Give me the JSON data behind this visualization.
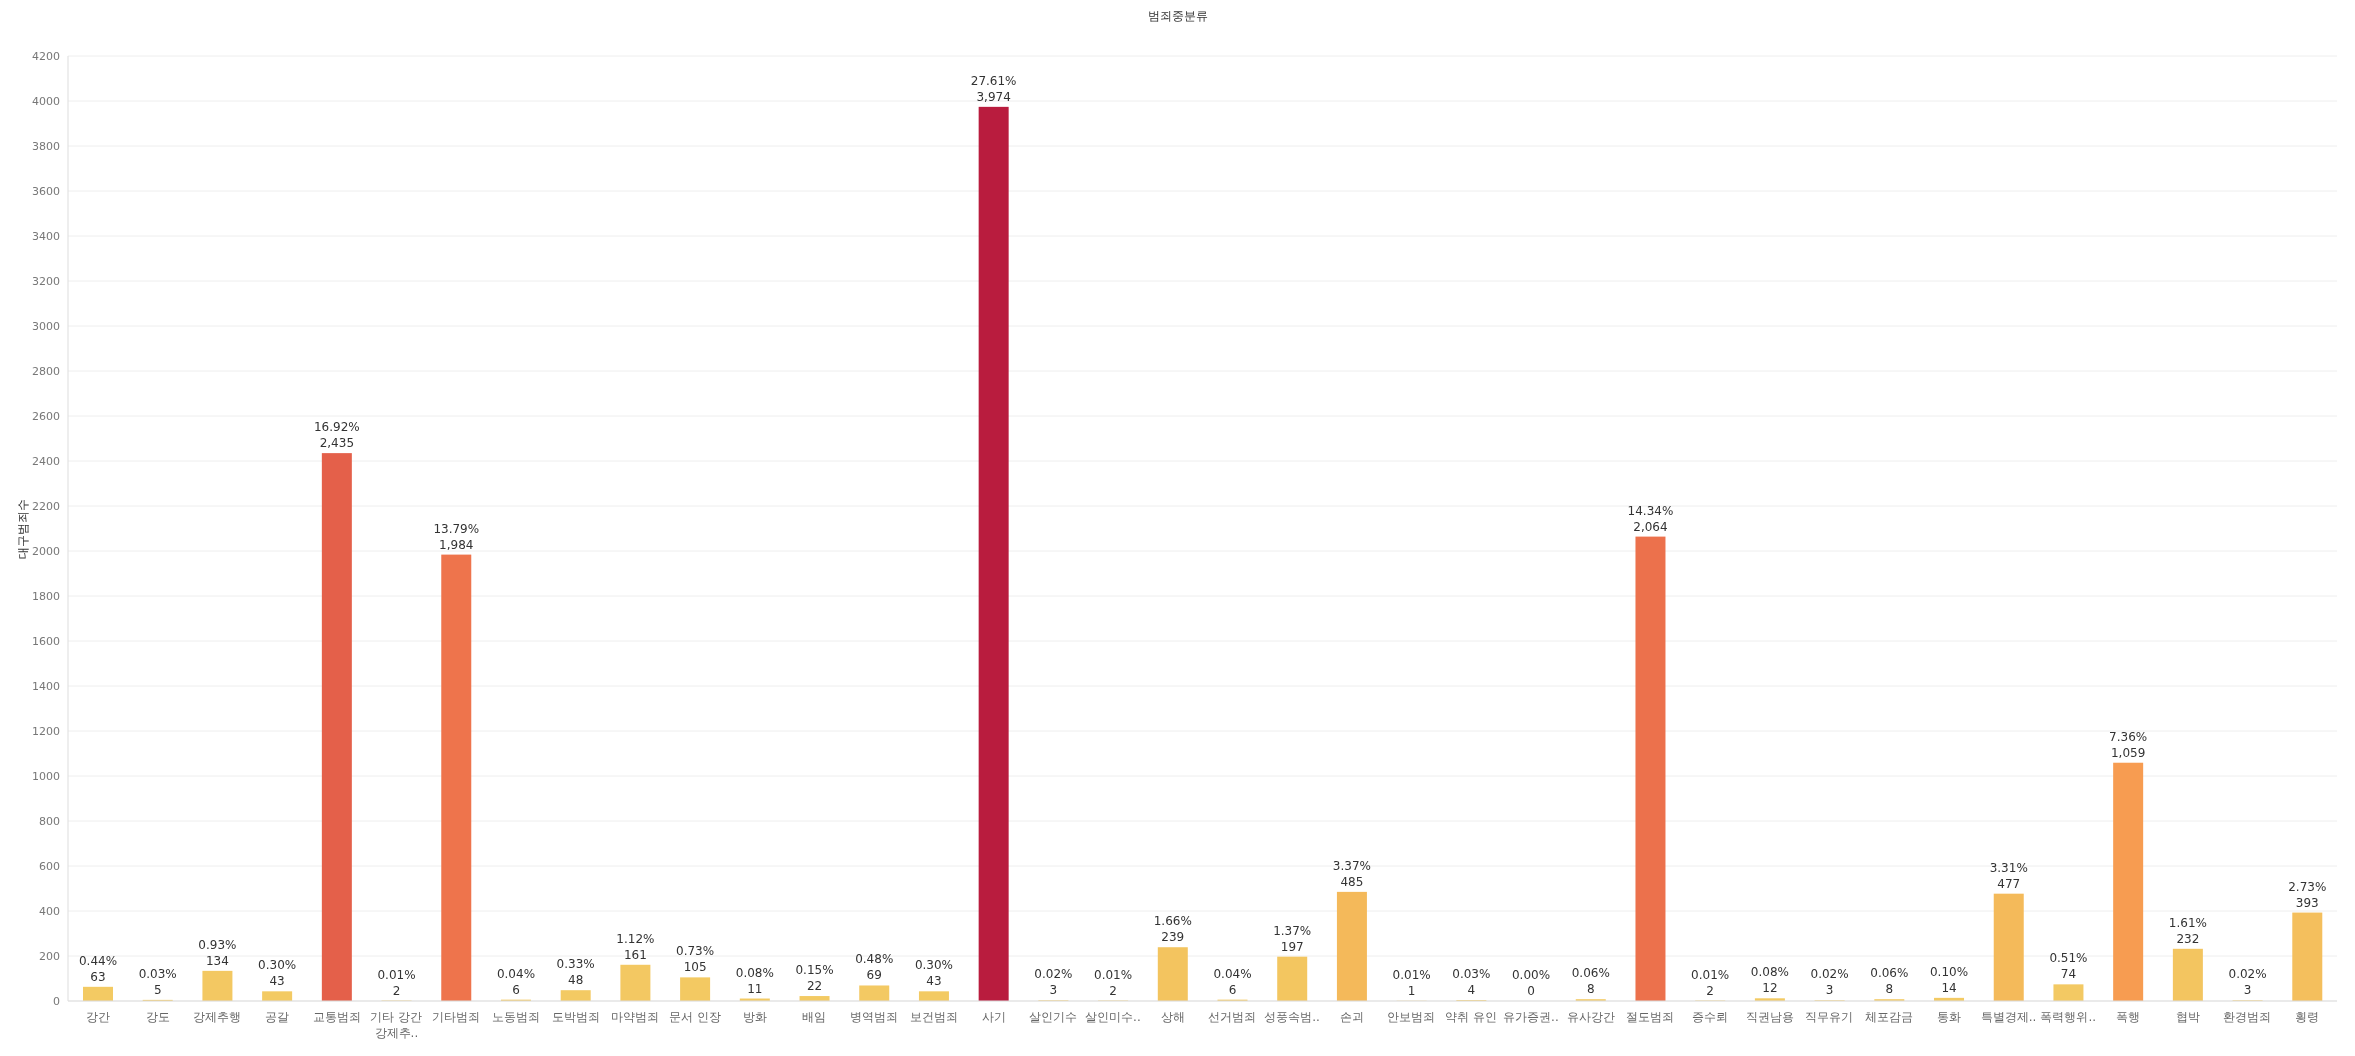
{
  "chart_data": {
    "type": "bar",
    "title": "범죄중분류",
    "ylabel": "대구범죄수",
    "categories": [
      "강간",
      "강도",
      "강제추행",
      "공갈",
      "교통범죄",
      "기타 강간 강제추..",
      "기타범죄",
      "노동범죄",
      "도박범죄",
      "마약범죄",
      "문서 인장",
      "방화",
      "배임",
      "병역범죄",
      "보건범죄",
      "사기",
      "살인기수",
      "살인미수..",
      "상해",
      "선거범죄",
      "성풍속범..",
      "손괴",
      "안보범죄",
      "약취 유인",
      "유가증권..",
      "유사강간",
      "절도범죄",
      "증수뢰",
      "직권남용",
      "직무유기",
      "체포감금",
      "통화",
      "특별경제..",
      "폭력행위..",
      "폭행",
      "협박",
      "환경범죄",
      "횡령"
    ],
    "values": [
      63,
      5,
      134,
      43,
      2435,
      2,
      1984,
      6,
      48,
      161,
      105,
      11,
      22,
      69,
      43,
      3974,
      3,
      2,
      239,
      6,
      197,
      485,
      1,
      4,
      0,
      8,
      2064,
      2,
      12,
      3,
      8,
      14,
      477,
      74,
      1059,
      232,
      3,
      393
    ],
    "value_labels": [
      "0.44%\n63",
      "0.03%\n5",
      "0.93%\n134",
      "0.30%\n43",
      "16.92%\n2,435",
      "0.01%\n2",
      "13.79%\n1,984",
      "0.04%\n6",
      "0.33%\n48",
      "1.12%\n161",
      "0.73%\n105",
      "0.08%\n11",
      "0.15%\n22",
      "0.48%\n69",
      "0.30%\n43",
      "27.61%\n3,974",
      "0.02%\n3",
      "0.01%\n2",
      "1.66%\n239",
      "0.04%\n6",
      "1.37%\n197",
      "3.37%\n485",
      "0.01%\n1",
      "0.03%\n4",
      "0.00%\n0",
      "0.06%\n8",
      "14.34%\n2,064",
      "0.01%\n2",
      "0.08%\n12",
      "0.02%\n3",
      "0.06%\n8",
      "0.10%\n14",
      "3.31%\n477",
      "0.51%\n74",
      "7.36%\n1,059",
      "1.61%\n232",
      "0.02%\n3",
      "2.73%\n393"
    ],
    "colors": [
      "#f3ca63",
      "#f3ca63",
      "#f3c862",
      "#f3ca63",
      "#e4604a",
      "#f3ca63",
      "#ee744c",
      "#f3ca63",
      "#f3ca63",
      "#f3c862",
      "#f3c962",
      "#f3ca63",
      "#f3ca63",
      "#f3c963",
      "#f3ca63",
      "#b91c3e",
      "#f3ca63",
      "#f3ca63",
      "#f3c45f",
      "#f3ca63",
      "#f3c660",
      "#f4b95a",
      "#f3ca63",
      "#f3ca63",
      "#f3ca63",
      "#f3ca63",
      "#ec714c",
      "#f3ca63",
      "#f3ca63",
      "#f3ca63",
      "#f3ca63",
      "#f3ca63",
      "#f4ba5a",
      "#f3c963",
      "#f79c51",
      "#f3c560",
      "#f3ca63",
      "#f4bf5d"
    ],
    "ylim": [
      0,
      4200
    ],
    "yticks": [
      0,
      200,
      400,
      600,
      800,
      1000,
      1200,
      1400,
      1600,
      1800,
      2000,
      2200,
      2400,
      2600,
      2800,
      3000,
      3200,
      3400,
      3600,
      3800,
      4000,
      4200
    ],
    "grid": "y"
  }
}
